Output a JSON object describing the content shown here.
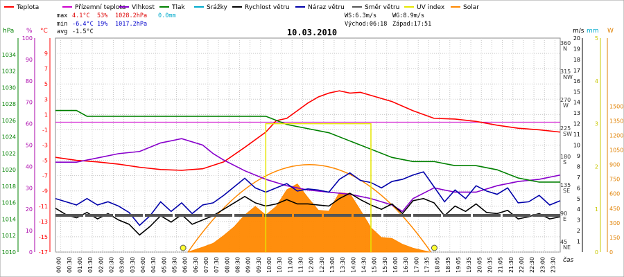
{
  "colors": {
    "temp": "#ff0000",
    "dew": "#cc00cc",
    "hum": "#8800cc",
    "press": "#008000",
    "rain": "#00aacc",
    "windspeed": "#000000",
    "gust": "#0000aa",
    "dir": "#555555",
    "uv": "#e6e600",
    "solar": "#ff8800",
    "grid": "#c8c8c8",
    "zero": "#cc00cc"
  },
  "legend": [
    {
      "key": "temp",
      "label": "Teplota"
    },
    {
      "key": "dew",
      "label": "Přízemní teplota"
    },
    {
      "key": "hum",
      "label": "Vlhkost"
    },
    {
      "key": "press",
      "label": "Tlak"
    },
    {
      "key": "rain",
      "label": "Srážky"
    },
    {
      "key": "windspeed",
      "label": "Rychlost větru"
    },
    {
      "key": "gust",
      "label": "Náraz větru"
    },
    {
      "key": "dir",
      "label": "Směr větru"
    },
    {
      "key": "uv",
      "label": "UV index"
    },
    {
      "key": "solar",
      "label": "Solar"
    }
  ],
  "stats": {
    "max_label": "max",
    "max_temp": "4.1°C",
    "max_hum": "53%",
    "max_press": "1028.2hPa",
    "rain": "0.0mm",
    "min_label": "min",
    "min_temp": "-6.4°C",
    "min_hum": "19%",
    "min_press": "1017.2hPa",
    "avg_label": "avg",
    "avg_temp": "-1.5°C",
    "ws": "WS:6.3m/s",
    "wg": "WG:8.9m/s",
    "sunrise": "Východ:06:18",
    "sunset": "Západ:17:51"
  },
  "chart_data": {
    "type": "line",
    "title": "10.03.2010",
    "xlabel": "čas",
    "x_ticks": [
      "00:00",
      "00:30",
      "01:00",
      "01:30",
      "02:00",
      "02:30",
      "03:00",
      "03:30",
      "04:00",
      "04:30",
      "05:00",
      "05:30",
      "06:00",
      "06:30",
      "07:00",
      "07:30",
      "08:00",
      "08:30",
      "09:00",
      "09:30",
      "10:00",
      "10:30",
      "11:00",
      "11:30",
      "12:00",
      "12:30",
      "13:00",
      "13:30",
      "14:00",
      "14:30",
      "15:00",
      "15:30",
      "16:00",
      "16:30",
      "17:00",
      "17:35",
      "18:05",
      "18:35",
      "19:05",
      "19:35",
      "20:05",
      "20:35",
      "21:05",
      "21:30",
      "22:00",
      "22:30",
      "23:00",
      "23:30"
    ],
    "axes": {
      "hPa": {
        "unit": "hPa",
        "range": [
          1010,
          1036
        ],
        "ticks": [
          "1034",
          "1032",
          "1030",
          "1028",
          "1026",
          "1024",
          "1022",
          "1020",
          "1018",
          "1016",
          "1014",
          "1012",
          "1010"
        ]
      },
      "pct": {
        "unit": "%",
        "range": [
          0,
          100
        ],
        "ticks": [
          "100",
          "90",
          "80",
          "70",
          "60",
          "50",
          "40",
          "30",
          "20",
          "10",
          "0"
        ]
      },
      "degC": {
        "unit": "°C",
        "range": [
          -17,
          11
        ],
        "ticks": [
          "9",
          "7",
          "5",
          "3",
          "1",
          "-1",
          "-3",
          "-5",
          "-7",
          "-9",
          "-11",
          "-13",
          "-15",
          "-17"
        ]
      },
      "dir": {
        "unit": "°",
        "ticks": [
          "360 N",
          "315 NW",
          "270 W",
          "225 SW",
          "180 S",
          "135 SE",
          "90 E",
          "45 NE"
        ]
      },
      "ms": {
        "unit": "m/s",
        "range": [
          0,
          20
        ],
        "ticks": [
          "20",
          "19",
          "18",
          "17",
          "16",
          "15",
          "14",
          "13",
          "12",
          "11",
          "10",
          "9",
          "8",
          "7",
          "6",
          "5",
          "4",
          "3",
          "2",
          "1"
        ]
      },
      "mm": {
        "unit": "mm",
        "ticks": [
          "1"
        ]
      },
      "uv": {
        "unit": "",
        "range": [
          0,
          5
        ],
        "ticks": [
          "5",
          "4",
          "3",
          "2",
          "1",
          "0"
        ]
      },
      "W": {
        "unit": "W",
        "range": [
          0,
          2200
        ],
        "ticks": [
          "1500",
          "1350",
          "1200",
          "1050",
          "900",
          "750",
          "600",
          "450",
          "300",
          "150",
          "0"
        ]
      }
    },
    "series": [
      {
        "name": "Teplota",
        "key": "temp",
        "axis": "degC",
        "points": [
          [
            0,
            -4.6
          ],
          [
            1,
            -5.0
          ],
          [
            2,
            -5.2
          ],
          [
            3,
            -5.5
          ],
          [
            4,
            -5.9
          ],
          [
            5,
            -6.2
          ],
          [
            6,
            -6.3
          ],
          [
            7,
            -6.1
          ],
          [
            8,
            -5.2
          ],
          [
            9,
            -3.3
          ],
          [
            10,
            -1.3
          ],
          [
            10.5,
            0.2
          ],
          [
            11,
            0.5
          ],
          [
            11.5,
            1.5
          ],
          [
            12,
            2.5
          ],
          [
            12.5,
            3.3
          ],
          [
            13,
            3.8
          ],
          [
            13.5,
            4.1
          ],
          [
            14,
            3.8
          ],
          [
            14.5,
            3.9
          ],
          [
            15,
            3.5
          ],
          [
            16,
            2.7
          ],
          [
            17,
            1.5
          ],
          [
            18,
            0.5
          ],
          [
            19,
            0.4
          ],
          [
            20,
            0.1
          ],
          [
            21,
            -0.4
          ],
          [
            22,
            -0.8
          ],
          [
            23,
            -1.0
          ],
          [
            24,
            -1.3
          ]
        ]
      },
      {
        "name": "Vlhkost",
        "key": "hum",
        "axis": "pct",
        "points": [
          [
            0,
            42
          ],
          [
            1,
            42
          ],
          [
            2,
            44
          ],
          [
            3,
            46
          ],
          [
            4,
            47
          ],
          [
            5,
            51
          ],
          [
            6,
            53
          ],
          [
            7,
            50
          ],
          [
            7.5,
            46
          ],
          [
            8,
            43
          ],
          [
            9,
            38
          ],
          [
            10,
            34
          ],
          [
            11,
            31
          ],
          [
            12,
            29
          ],
          [
            13,
            28
          ],
          [
            14,
            27
          ],
          [
            15,
            25
          ],
          [
            16,
            22
          ],
          [
            16.5,
            19
          ],
          [
            17,
            25
          ],
          [
            18,
            30
          ],
          [
            19,
            28
          ],
          [
            20,
            28
          ],
          [
            21,
            31
          ],
          [
            22,
            33
          ],
          [
            23,
            34
          ],
          [
            24,
            36
          ]
        ]
      },
      {
        "name": "Tlak",
        "key": "press",
        "axis": "hPa",
        "points": [
          [
            0,
            1027.2
          ],
          [
            1,
            1027.2
          ],
          [
            1.5,
            1026.5
          ],
          [
            2,
            1026.5
          ],
          [
            6,
            1026.5
          ],
          [
            7,
            1026.5
          ],
          [
            8,
            1026.5
          ],
          [
            9,
            1026.5
          ],
          [
            10,
            1026.5
          ],
          [
            11,
            1025.5
          ],
          [
            12,
            1025.0
          ],
          [
            13,
            1024.5
          ],
          [
            14,
            1023.5
          ],
          [
            15,
            1022.5
          ],
          [
            16,
            1021.5
          ],
          [
            17,
            1021.0
          ],
          [
            18,
            1021.0
          ],
          [
            19,
            1020.5
          ],
          [
            20,
            1020.5
          ],
          [
            21,
            1020.0
          ],
          [
            22,
            1019.0
          ],
          [
            23,
            1018.5
          ],
          [
            24,
            1018.5
          ]
        ]
      },
      {
        "name": "Rychlost větru",
        "key": "windspeed",
        "axis": "ms",
        "points": [
          [
            0,
            4.1
          ],
          [
            0.5,
            3.5
          ],
          [
            1,
            3.2
          ],
          [
            1.5,
            3.7
          ],
          [
            2,
            3.1
          ],
          [
            2.5,
            3.6
          ],
          [
            3,
            3.0
          ],
          [
            3.5,
            2.6
          ],
          [
            4,
            1.6
          ],
          [
            4.5,
            2.4
          ],
          [
            5,
            3.4
          ],
          [
            5.5,
            2.8
          ],
          [
            6,
            3.5
          ],
          [
            6.5,
            2.6
          ],
          [
            7,
            3.0
          ],
          [
            7.5,
            3.4
          ],
          [
            8,
            4.0
          ],
          [
            8.5,
            4.6
          ],
          [
            9,
            5.2
          ],
          [
            9.5,
            4.6
          ],
          [
            10,
            4.3
          ],
          [
            10.5,
            4.5
          ],
          [
            11,
            4.9
          ],
          [
            11.5,
            4.5
          ],
          [
            12,
            4.5
          ],
          [
            12.5,
            4.4
          ],
          [
            13,
            4.3
          ],
          [
            13.5,
            5.0
          ],
          [
            14,
            5.5
          ],
          [
            14.5,
            4.9
          ],
          [
            15,
            4.4
          ],
          [
            15.5,
            4.0
          ],
          [
            16,
            4.5
          ],
          [
            16.5,
            3.6
          ],
          [
            17,
            4.8
          ],
          [
            17.5,
            5.0
          ],
          [
            18,
            4.6
          ],
          [
            18.5,
            3.4
          ],
          [
            19,
            4.3
          ],
          [
            19.5,
            3.8
          ],
          [
            20,
            4.5
          ],
          [
            20.5,
            3.7
          ],
          [
            21,
            3.6
          ],
          [
            21.5,
            3.9
          ],
          [
            22,
            3.1
          ],
          [
            22.5,
            3.3
          ],
          [
            23,
            3.6
          ],
          [
            23.5,
            3.1
          ],
          [
            24,
            3.3
          ]
        ]
      },
      {
        "name": "Náraz větru",
        "key": "gust",
        "axis": "ms",
        "points": [
          [
            0,
            5.0
          ],
          [
            0.5,
            4.7
          ],
          [
            1,
            4.4
          ],
          [
            1.5,
            5.0
          ],
          [
            2,
            4.4
          ],
          [
            2.5,
            4.7
          ],
          [
            3,
            4.3
          ],
          [
            3.5,
            3.7
          ],
          [
            4,
            2.5
          ],
          [
            4.5,
            3.4
          ],
          [
            5,
            4.7
          ],
          [
            5.5,
            3.8
          ],
          [
            6,
            4.6
          ],
          [
            6.5,
            3.6
          ],
          [
            7,
            4.4
          ],
          [
            7.5,
            4.6
          ],
          [
            8,
            5.3
          ],
          [
            8.5,
            6.1
          ],
          [
            9,
            6.9
          ],
          [
            9.5,
            6.0
          ],
          [
            10,
            5.6
          ],
          [
            10.5,
            6.0
          ],
          [
            11,
            6.4
          ],
          [
            11.5,
            5.7
          ],
          [
            12,
            5.9
          ],
          [
            12.5,
            5.8
          ],
          [
            13,
            5.6
          ],
          [
            13.5,
            6.8
          ],
          [
            14,
            7.4
          ],
          [
            14.5,
            6.7
          ],
          [
            15,
            6.5
          ],
          [
            15.5,
            6.0
          ],
          [
            16,
            6.6
          ],
          [
            16.5,
            6.8
          ],
          [
            17,
            7.2
          ],
          [
            17.5,
            7.5
          ],
          [
            18,
            6.1
          ],
          [
            18.5,
            4.7
          ],
          [
            19,
            5.8
          ],
          [
            19.5,
            5.0
          ],
          [
            20,
            6.2
          ],
          [
            20.5,
            5.7
          ],
          [
            21,
            5.4
          ],
          [
            21.5,
            6.0
          ],
          [
            22,
            4.6
          ],
          [
            22.5,
            4.7
          ],
          [
            23,
            5.3
          ],
          [
            23.5,
            4.4
          ],
          [
            24,
            4.8
          ]
        ]
      },
      {
        "name": "Směr větru",
        "key": "dir",
        "axis": "dir",
        "points": [
          [
            0,
            90
          ],
          [
            24,
            90
          ]
        ]
      },
      {
        "name": "Solar",
        "key": "solar",
        "axis": "W",
        "points": [
          [
            6.3,
            0
          ],
          [
            7,
            50
          ],
          [
            7.5,
            90
          ],
          [
            8,
            170
          ],
          [
            8.5,
            260
          ],
          [
            9,
            380
          ],
          [
            9.5,
            470
          ],
          [
            10,
            380
          ],
          [
            10.5,
            470
          ],
          [
            11,
            640
          ],
          [
            11.5,
            700
          ],
          [
            12,
            560
          ],
          [
            12.5,
            430
          ],
          [
            13,
            420
          ],
          [
            13.5,
            610
          ],
          [
            14,
            600
          ],
          [
            14.5,
            430
          ],
          [
            15,
            250
          ],
          [
            15.5,
            150
          ],
          [
            16,
            140
          ],
          [
            16.5,
            80
          ],
          [
            17,
            40
          ],
          [
            17.8,
            0
          ]
        ]
      },
      {
        "name": "UV index",
        "key": "uv",
        "axis": "uv",
        "points": [
          [
            10,
            3
          ],
          [
            15,
            3
          ]
        ]
      }
    ]
  }
}
